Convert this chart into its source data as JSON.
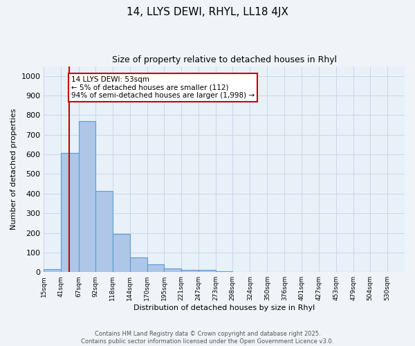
{
  "title": "14, LLYS DEWI, RHYL, LL18 4JX",
  "subtitle": "Size of property relative to detached houses in Rhyl",
  "xlabel": "Distribution of detached houses by size in Rhyl",
  "ylabel": "Number of detached properties",
  "bin_labels": [
    "15sqm",
    "41sqm",
    "67sqm",
    "92sqm",
    "118sqm",
    "144sqm",
    "170sqm",
    "195sqm",
    "221sqm",
    "247sqm",
    "273sqm",
    "298sqm",
    "324sqm",
    "350sqm",
    "376sqm",
    "401sqm",
    "427sqm",
    "453sqm",
    "479sqm",
    "504sqm",
    "530sqm"
  ],
  "bar_values": [
    15,
    608,
    770,
    415,
    193,
    75,
    38,
    18,
    13,
    13,
    6,
    0,
    0,
    0,
    0,
    0,
    0,
    0,
    0,
    0
  ],
  "bar_color": "#aec6e8",
  "bar_edge_color": "#5b9bd5",
  "ylim": [
    0,
    1050
  ],
  "yticks": [
    0,
    100,
    200,
    300,
    400,
    500,
    600,
    700,
    800,
    900,
    1000
  ],
  "bin_edges_start": [
    15,
    41,
    67,
    92,
    118,
    144,
    170,
    195,
    221,
    247,
    273,
    298,
    324,
    350,
    376,
    401,
    427,
    453,
    479,
    504,
    530
  ],
  "red_line_x": 53,
  "annotation_text": "14 LLYS DEWI: 53sqm\n← 5% of detached houses are smaller (112)\n94% of semi-detached houses are larger (1,998) →",
  "annotation_box_color": "#ffffff",
  "annotation_box_edge": "#cc0000",
  "red_line_color": "#cc0000",
  "grid_color": "#c8d8e8",
  "bg_color": "#e8f0f8",
  "fig_bg_color": "#f0f4f8",
  "footer_line1": "Contains HM Land Registry data © Crown copyright and database right 2025.",
  "footer_line2": "Contains public sector information licensed under the Open Government Licence v3.0."
}
